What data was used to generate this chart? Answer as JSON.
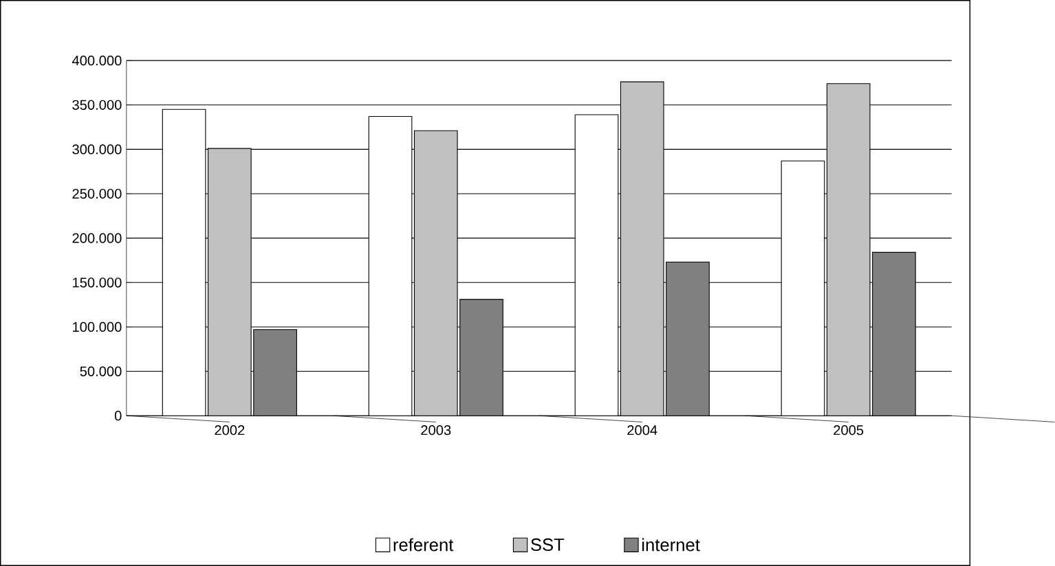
{
  "chart_data": {
    "type": "bar",
    "categories": [
      "2002",
      "2003",
      "2004",
      "2005"
    ],
    "series": [
      {
        "name": "referent",
        "color": "#ffffff",
        "values": [
          345000,
          337000,
          339000,
          287000
        ]
      },
      {
        "name": "SST",
        "color": "#c0c0c0",
        "values": [
          301000,
          321000,
          376000,
          374000
        ]
      },
      {
        "name": "internet",
        "color": "#808080",
        "values": [
          97000,
          131000,
          173000,
          184000
        ]
      }
    ],
    "ylim": [
      0,
      400000
    ],
    "yticks": [
      {
        "value": 0,
        "label": "0"
      },
      {
        "value": 50000,
        "label": "50.000"
      },
      {
        "value": 100000,
        "label": "100.000"
      },
      {
        "value": 150000,
        "label": "150.000"
      },
      {
        "value": 200000,
        "label": "200.000"
      },
      {
        "value": 250000,
        "label": "250.000"
      },
      {
        "value": 300000,
        "label": "300.000"
      },
      {
        "value": 350000,
        "label": "350.000"
      },
      {
        "value": 400000,
        "label": "400.000"
      }
    ],
    "grid": "y",
    "legend": "bottom"
  }
}
